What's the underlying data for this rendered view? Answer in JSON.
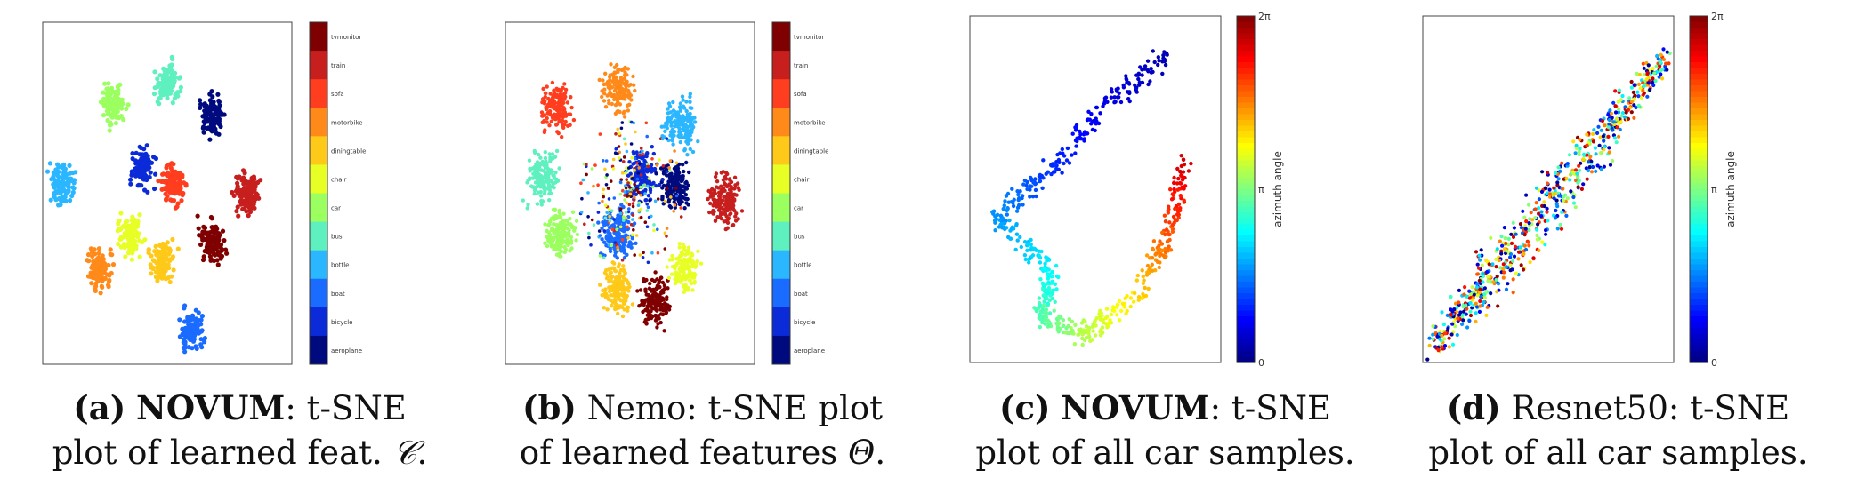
{
  "class_colorbar": {
    "labels": [
      "tvmonitor",
      "train",
      "sofa",
      "motorbike",
      "diningtable",
      "chair",
      "car",
      "bus",
      "bottle",
      "boat",
      "bicycle",
      "aeroplane"
    ],
    "colors": [
      "#7f0000",
      "#c71e1e",
      "#ff3d1f",
      "#ff8a1a",
      "#ffc919",
      "#e7ff25",
      "#9bff5f",
      "#5ff0c0",
      "#2bb7ff",
      "#1a6bff",
      "#0b2bd9",
      "#000a7f"
    ]
  },
  "angle_colorbar": {
    "ticks": [
      "2π",
      "π",
      "0"
    ],
    "label": "azimuth angle",
    "colormap": [
      "#00007f",
      "#0000ff",
      "#007fff",
      "#00ffff",
      "#7fff7f",
      "#ffff00",
      "#ff7f00",
      "#ff0000",
      "#7f0000"
    ]
  },
  "panels": [
    {
      "caption": {
        "label": "(a)",
        "line1_em": "NOVUM",
        "line1_rest": ": t-SNE",
        "line2": "plot of learned feat. ",
        "line2_sym": "𝒞",
        "line2_end": "."
      },
      "chart_data": {
        "type": "scatter",
        "colorbar": "class",
        "clusters": [
          {
            "class": "tvmonitor",
            "x": 0.68,
            "y": 0.64
          },
          {
            "class": "train",
            "x": 0.82,
            "y": 0.5
          },
          {
            "class": "sofa",
            "x": 0.52,
            "y": 0.47
          },
          {
            "class": "motorbike",
            "x": 0.23,
            "y": 0.72
          },
          {
            "class": "diningtable",
            "x": 0.48,
            "y": 0.7
          },
          {
            "class": "chair",
            "x": 0.35,
            "y": 0.62
          },
          {
            "class": "car",
            "x": 0.28,
            "y": 0.24
          },
          {
            "class": "bus",
            "x": 0.5,
            "y": 0.18
          },
          {
            "class": "bottle",
            "x": 0.08,
            "y": 0.47
          },
          {
            "class": "boat",
            "x": 0.6,
            "y": 0.9
          },
          {
            "class": "bicycle",
            "x": 0.4,
            "y": 0.43
          },
          {
            "class": "aeroplane",
            "x": 0.68,
            "y": 0.27
          }
        ]
      }
    },
    {
      "caption": {
        "label": "(b)",
        "line1_em": "",
        "line1_rest": " Nemo: t-SNE plot",
        "line2": "of learned features ",
        "line2_sym": "Θ",
        "line2_end": "."
      },
      "chart_data": {
        "type": "scatter",
        "colorbar": "class",
        "clusters": [
          {
            "class": "tvmonitor",
            "x": 0.6,
            "y": 0.82
          },
          {
            "class": "train",
            "x": 0.88,
            "y": 0.52
          },
          {
            "class": "sofa",
            "x": 0.2,
            "y": 0.25
          },
          {
            "class": "motorbike",
            "x": 0.45,
            "y": 0.2
          },
          {
            "class": "diningtable",
            "x": 0.45,
            "y": 0.78
          },
          {
            "class": "chair",
            "x": 0.72,
            "y": 0.72
          },
          {
            "class": "car",
            "x": 0.22,
            "y": 0.62
          },
          {
            "class": "bus",
            "x": 0.15,
            "y": 0.45
          },
          {
            "class": "bottle",
            "x": 0.7,
            "y": 0.3
          },
          {
            "class": "boat",
            "x": 0.45,
            "y": 0.62
          },
          {
            "class": "bicycle",
            "x": 0.55,
            "y": 0.45
          },
          {
            "class": "aeroplane",
            "x": 0.68,
            "y": 0.48
          }
        ]
      }
    },
    {
      "caption": {
        "label": "(c)",
        "line1_em": "NOVUM",
        "line1_rest": ": t-SNE",
        "line2": "plot of all car samples.",
        "line2_sym": "",
        "line2_end": ""
      },
      "chart_data": {
        "type": "scatter",
        "colorbar": "angle",
        "structure": "ring of points ordered by azimuth angle (0 to 2π)",
        "segments": [
          {
            "angle": 0.05,
            "x": 0.78,
            "y": 0.12
          },
          {
            "angle": 0.1,
            "x": 0.55,
            "y": 0.25
          },
          {
            "angle": 0.17,
            "x": 0.32,
            "y": 0.45
          },
          {
            "angle": 0.27,
            "x": 0.1,
            "y": 0.58
          },
          {
            "angle": 0.37,
            "x": 0.32,
            "y": 0.74
          },
          {
            "angle": 0.45,
            "x": 0.28,
            "y": 0.86
          },
          {
            "angle": 0.55,
            "x": 0.45,
            "y": 0.92
          },
          {
            "angle": 0.65,
            "x": 0.65,
            "y": 0.82
          },
          {
            "angle": 0.8,
            "x": 0.8,
            "y": 0.62
          },
          {
            "angle": 0.92,
            "x": 0.85,
            "y": 0.42
          }
        ]
      }
    },
    {
      "caption": {
        "label": "(d)",
        "line1_em": "",
        "line1_rest": " Resnet50: t-SNE",
        "line2": "plot of all car samples.",
        "line2_sym": "",
        "line2_end": ""
      },
      "chart_data": {
        "type": "scatter",
        "colorbar": "angle",
        "structure": "diagonal band with angles randomly mixed",
        "band": {
          "x0": 0.05,
          "y0": 0.12,
          "x1": 0.97,
          "y1": 0.95
        }
      }
    }
  ]
}
